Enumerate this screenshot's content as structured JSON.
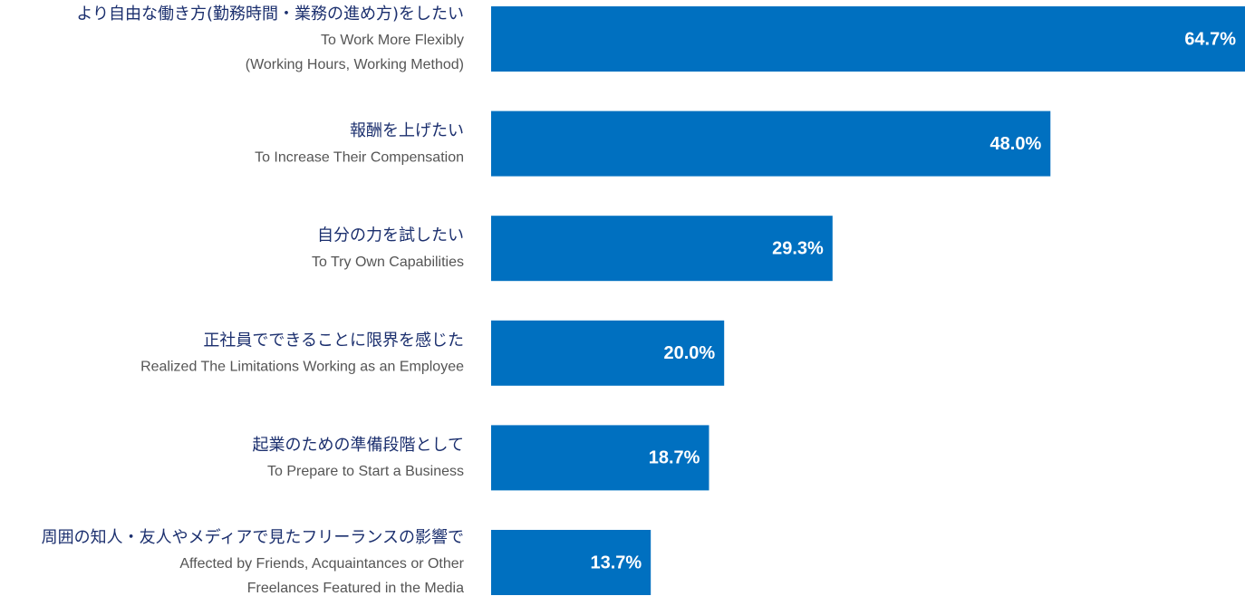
{
  "chart_data": {
    "type": "bar",
    "orientation": "horizontal",
    "color": "#0070c0",
    "categories": [
      {
        "ja": "より自由な働き方(勤務時間・業務の進め方)をしたい",
        "en": [
          "To Work More Flexibly",
          "(Working Hours, Working Method)"
        ]
      },
      {
        "ja": "報酬を上げたい",
        "en": [
          "To Increase Their Compensation"
        ]
      },
      {
        "ja": "自分の力を試したい",
        "en": [
          "To Try Own Capabilities"
        ]
      },
      {
        "ja": "正社員でできることに限界を感じた",
        "en": [
          "Realized The Limitations Working as an Employee"
        ]
      },
      {
        "ja": "起業のための準備段階として",
        "en": [
          "To Prepare to Start a Business"
        ]
      },
      {
        "ja": "周囲の知人・友人やメディアで見たフリーランスの影響で",
        "en": [
          "Affected by Friends, Acquaintances or Other",
          "Freelances Featured in the Media"
        ]
      }
    ],
    "values": [
      64.7,
      48.0,
      29.3,
      20.0,
      18.7,
      13.7
    ],
    "value_labels": [
      "64.7%",
      "48.0%",
      "29.3%",
      "20.0%",
      "18.7%",
      "13.7%"
    ]
  }
}
